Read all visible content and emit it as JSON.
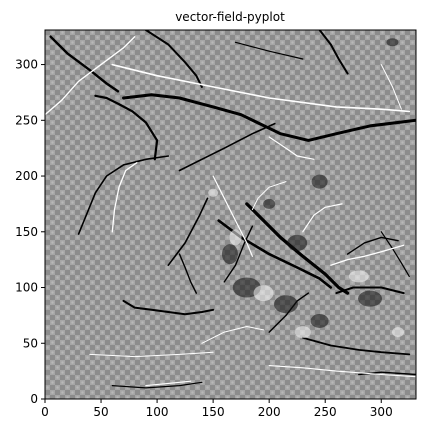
{
  "chart_data": {
    "type": "heatmap",
    "title": "vector-field-pyplot",
    "xlabel": "",
    "ylabel": "",
    "xlim": [
      0,
      331
    ],
    "ylim": [
      0,
      331
    ],
    "x_ticks": [
      0,
      50,
      100,
      150,
      200,
      250,
      300
    ],
    "y_ticks": [
      0,
      50,
      100,
      150,
      200,
      250,
      300
    ],
    "colormap": "gray",
    "background_level": 0.55,
    "grid": false,
    "strokes": [
      {
        "tone": "black",
        "w": 3.0,
        "pts": [
          [
            70,
            270
          ],
          [
            95,
            273
          ],
          [
            120,
            270
          ],
          [
            150,
            262
          ],
          [
            175,
            255
          ],
          [
            210,
            238
          ],
          [
            235,
            232
          ],
          [
            260,
            238
          ],
          [
            290,
            245
          ],
          [
            331,
            250
          ]
        ]
      },
      {
        "tone": "black",
        "w": 2.2,
        "pts": [
          [
            45,
            272
          ],
          [
            55,
            270
          ],
          [
            65,
            265
          ],
          [
            78,
            258
          ],
          [
            90,
            248
          ],
          [
            100,
            232
          ],
          [
            98,
            215
          ]
        ]
      },
      {
        "tone": "black",
        "w": 2.0,
        "pts": [
          [
            70,
            88
          ],
          [
            80,
            82
          ],
          [
            95,
            80
          ],
          [
            110,
            78
          ],
          [
            125,
            76
          ],
          [
            140,
            78
          ],
          [
            150,
            80
          ]
        ]
      },
      {
        "tone": "black",
        "w": 3.2,
        "pts": [
          [
            180,
            175
          ],
          [
            195,
            160
          ],
          [
            210,
            145
          ],
          [
            230,
            128
          ],
          [
            250,
            112
          ],
          [
            262,
            100
          ],
          [
            270,
            95
          ]
        ]
      },
      {
        "tone": "black",
        "w": 2.6,
        "pts": [
          [
            155,
            160
          ],
          [
            175,
            145
          ],
          [
            200,
            130
          ],
          [
            225,
            118
          ],
          [
            245,
            108
          ],
          [
            255,
            100
          ]
        ]
      },
      {
        "tone": "black",
        "w": 2.0,
        "pts": [
          [
            260,
            95
          ],
          [
            275,
            100
          ],
          [
            300,
            100
          ],
          [
            320,
            95
          ]
        ]
      },
      {
        "tone": "black",
        "w": 2.4,
        "pts": [
          [
            5,
            325
          ],
          [
            20,
            310
          ],
          [
            40,
            295
          ],
          [
            55,
            283
          ],
          [
            65,
            276
          ]
        ]
      },
      {
        "tone": "black",
        "w": 2.0,
        "pts": [
          [
            90,
            331
          ],
          [
            110,
            318
          ],
          [
            125,
            302
          ],
          [
            135,
            290
          ],
          [
            140,
            280
          ]
        ]
      },
      {
        "tone": "black",
        "w": 2.0,
        "pts": [
          [
            245,
            331
          ],
          [
            255,
            318
          ],
          [
            262,
            305
          ],
          [
            270,
            292
          ]
        ]
      },
      {
        "tone": "black",
        "w": 1.6,
        "pts": [
          [
            120,
            205
          ],
          [
            140,
            215
          ],
          [
            160,
            225
          ],
          [
            185,
            238
          ],
          [
            205,
            247
          ]
        ]
      },
      {
        "tone": "black",
        "w": 1.6,
        "pts": [
          [
            30,
            148
          ],
          [
            45,
            185
          ],
          [
            55,
            200
          ],
          [
            70,
            210
          ],
          [
            90,
            215
          ],
          [
            110,
            218
          ]
        ]
      },
      {
        "tone": "black",
        "w": 1.6,
        "pts": [
          [
            110,
            120
          ],
          [
            125,
            140
          ],
          [
            138,
            165
          ],
          [
            145,
            180
          ]
        ]
      },
      {
        "tone": "black",
        "w": 1.8,
        "pts": [
          [
            230,
            55
          ],
          [
            255,
            48
          ],
          [
            280,
            44
          ],
          [
            300,
            42
          ],
          [
            325,
            40
          ]
        ]
      },
      {
        "tone": "black",
        "w": 1.4,
        "pts": [
          [
            280,
            22
          ],
          [
            300,
            24
          ],
          [
            331,
            22
          ]
        ]
      },
      {
        "tone": "black",
        "w": 1.2,
        "pts": [
          [
            60,
            12
          ],
          [
            90,
            10
          ],
          [
            120,
            12
          ],
          [
            140,
            15
          ]
        ]
      },
      {
        "tone": "black",
        "w": 1.4,
        "pts": [
          [
            200,
            60
          ],
          [
            215,
            75
          ],
          [
            225,
            88
          ],
          [
            235,
            95
          ]
        ]
      },
      {
        "tone": "black",
        "w": 1.4,
        "pts": [
          [
            160,
            105
          ],
          [
            170,
            120
          ],
          [
            178,
            140
          ],
          [
            185,
            155
          ]
        ]
      },
      {
        "tone": "black",
        "w": 1.4,
        "pts": [
          [
            120,
            130
          ],
          [
            125,
            118
          ],
          [
            130,
            105
          ],
          [
            135,
            95
          ]
        ]
      },
      {
        "tone": "black",
        "w": 1.2,
        "pts": [
          [
            300,
            150
          ],
          [
            310,
            135
          ],
          [
            318,
            122
          ],
          [
            325,
            110
          ]
        ]
      },
      {
        "tone": "black",
        "w": 1.4,
        "pts": [
          [
            270,
            130
          ],
          [
            285,
            140
          ],
          [
            300,
            145
          ],
          [
            315,
            142
          ]
        ]
      },
      {
        "tone": "black",
        "w": 1.2,
        "pts": [
          [
            170,
            320
          ],
          [
            200,
            312
          ],
          [
            230,
            305
          ]
        ]
      },
      {
        "tone": "white",
        "w": 1.6,
        "pts": [
          [
            60,
            300
          ],
          [
            100,
            290
          ],
          [
            150,
            280
          ],
          [
            200,
            270
          ],
          [
            260,
            262
          ],
          [
            300,
            260
          ],
          [
            325,
            258
          ]
        ]
      },
      {
        "tone": "white",
        "w": 1.4,
        "pts": [
          [
            0,
            255
          ],
          [
            15,
            268
          ],
          [
            30,
            285
          ],
          [
            50,
            300
          ],
          [
            70,
            315
          ],
          [
            80,
            325
          ]
        ]
      },
      {
        "tone": "white",
        "w": 1.3,
        "pts": [
          [
            60,
            150
          ],
          [
            62,
            170
          ],
          [
            66,
            190
          ],
          [
            72,
            205
          ],
          [
            82,
            212
          ]
        ]
      },
      {
        "tone": "white",
        "w": 1.3,
        "pts": [
          [
            255,
            120
          ],
          [
            270,
            125
          ],
          [
            285,
            128
          ],
          [
            300,
            132
          ],
          [
            320,
            138
          ]
        ]
      },
      {
        "tone": "white",
        "w": 1.2,
        "pts": [
          [
            150,
            200
          ],
          [
            160,
            180
          ],
          [
            170,
            160
          ],
          [
            180,
            140
          ],
          [
            185,
            128
          ]
        ]
      },
      {
        "tone": "white",
        "w": 1.1,
        "pts": [
          [
            90,
            12
          ],
          [
            110,
            14
          ],
          [
            130,
            16
          ]
        ]
      },
      {
        "tone": "white",
        "w": 1.1,
        "pts": [
          [
            200,
            30
          ],
          [
            230,
            28
          ],
          [
            260,
            25
          ],
          [
            300,
            22
          ],
          [
            331,
            20
          ]
        ]
      },
      {
        "tone": "white",
        "w": 1.0,
        "pts": [
          [
            40,
            40
          ],
          [
            80,
            38
          ],
          [
            120,
            40
          ],
          [
            150,
            42
          ]
        ]
      },
      {
        "tone": "white",
        "w": 1.2,
        "pts": [
          [
            230,
            150
          ],
          [
            240,
            165
          ],
          [
            250,
            172
          ],
          [
            265,
            175
          ]
        ]
      },
      {
        "tone": "white",
        "w": 1.0,
        "pts": [
          [
            140,
            50
          ],
          [
            160,
            60
          ],
          [
            180,
            65
          ],
          [
            195,
            62
          ]
        ]
      },
      {
        "tone": "white",
        "w": 1.2,
        "pts": [
          [
            200,
            235
          ],
          [
            215,
            225
          ],
          [
            225,
            218
          ],
          [
            240,
            215
          ]
        ]
      },
      {
        "tone": "white",
        "w": 1.0,
        "pts": [
          [
            300,
            300
          ],
          [
            310,
            280
          ],
          [
            318,
            260
          ]
        ]
      },
      {
        "tone": "white",
        "w": 1.0,
        "pts": [
          [
            185,
            170
          ],
          [
            190,
            180
          ],
          [
            200,
            190
          ],
          [
            215,
            195
          ]
        ]
      }
    ],
    "blobs": [
      {
        "tone": "black",
        "cx": 225,
        "cy": 140,
        "rx": 10,
        "ry": 8
      },
      {
        "tone": "black",
        "cx": 180,
        "cy": 100,
        "rx": 14,
        "ry": 10
      },
      {
        "tone": "black",
        "cx": 215,
        "cy": 85,
        "rx": 12,
        "ry": 9
      },
      {
        "tone": "black",
        "cx": 245,
        "cy": 70,
        "rx": 9,
        "ry": 7
      },
      {
        "tone": "black",
        "cx": 290,
        "cy": 90,
        "rx": 12,
        "ry": 8
      },
      {
        "tone": "black",
        "cx": 165,
        "cy": 130,
        "rx": 8,
        "ry": 10
      },
      {
        "tone": "black",
        "cx": 245,
        "cy": 195,
        "rx": 8,
        "ry": 7
      },
      {
        "tone": "black",
        "cx": 200,
        "cy": 175,
        "rx": 6,
        "ry": 5
      },
      {
        "tone": "black",
        "cx": 310,
        "cy": 320,
        "rx": 6,
        "ry": 4
      },
      {
        "tone": "white",
        "cx": 195,
        "cy": 95,
        "rx": 10,
        "ry": 8
      },
      {
        "tone": "white",
        "cx": 230,
        "cy": 60,
        "rx": 8,
        "ry": 6
      },
      {
        "tone": "white",
        "cx": 170,
        "cy": 145,
        "rx": 6,
        "ry": 8
      },
      {
        "tone": "white",
        "cx": 280,
        "cy": 110,
        "rx": 10,
        "ry": 6
      },
      {
        "tone": "white",
        "cx": 315,
        "cy": 60,
        "rx": 6,
        "ry": 5
      },
      {
        "tone": "white",
        "cx": 150,
        "cy": 185,
        "rx": 5,
        "ry": 4
      }
    ]
  }
}
